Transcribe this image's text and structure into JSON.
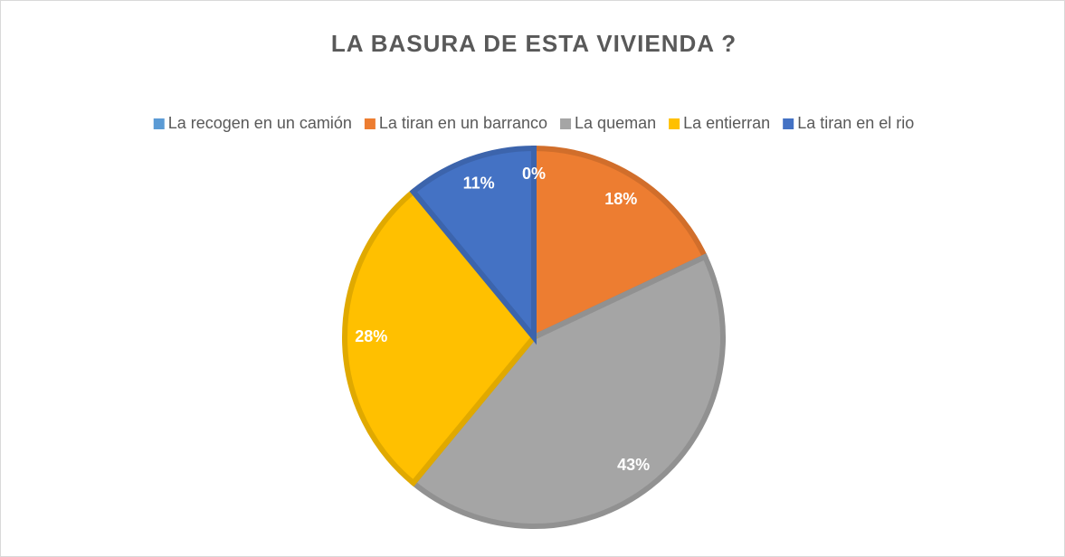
{
  "chart_data": {
    "type": "pie",
    "title": "LA BASURA DE ESTA VIVIENDA ?",
    "categories": [
      "La recogen en un camión",
      "La tiran en un barranco",
      "La queman",
      "La entierran",
      "La tiran en el rio"
    ],
    "values": [
      0,
      18,
      43,
      28,
      11
    ],
    "value_labels": [
      "0%",
      "18%",
      "43%",
      "28%",
      "11%"
    ],
    "colors": [
      "#5b9bd5",
      "#ed7d31",
      "#a5a5a5",
      "#ffc000",
      "#4472c4"
    ],
    "legend": "top"
  }
}
